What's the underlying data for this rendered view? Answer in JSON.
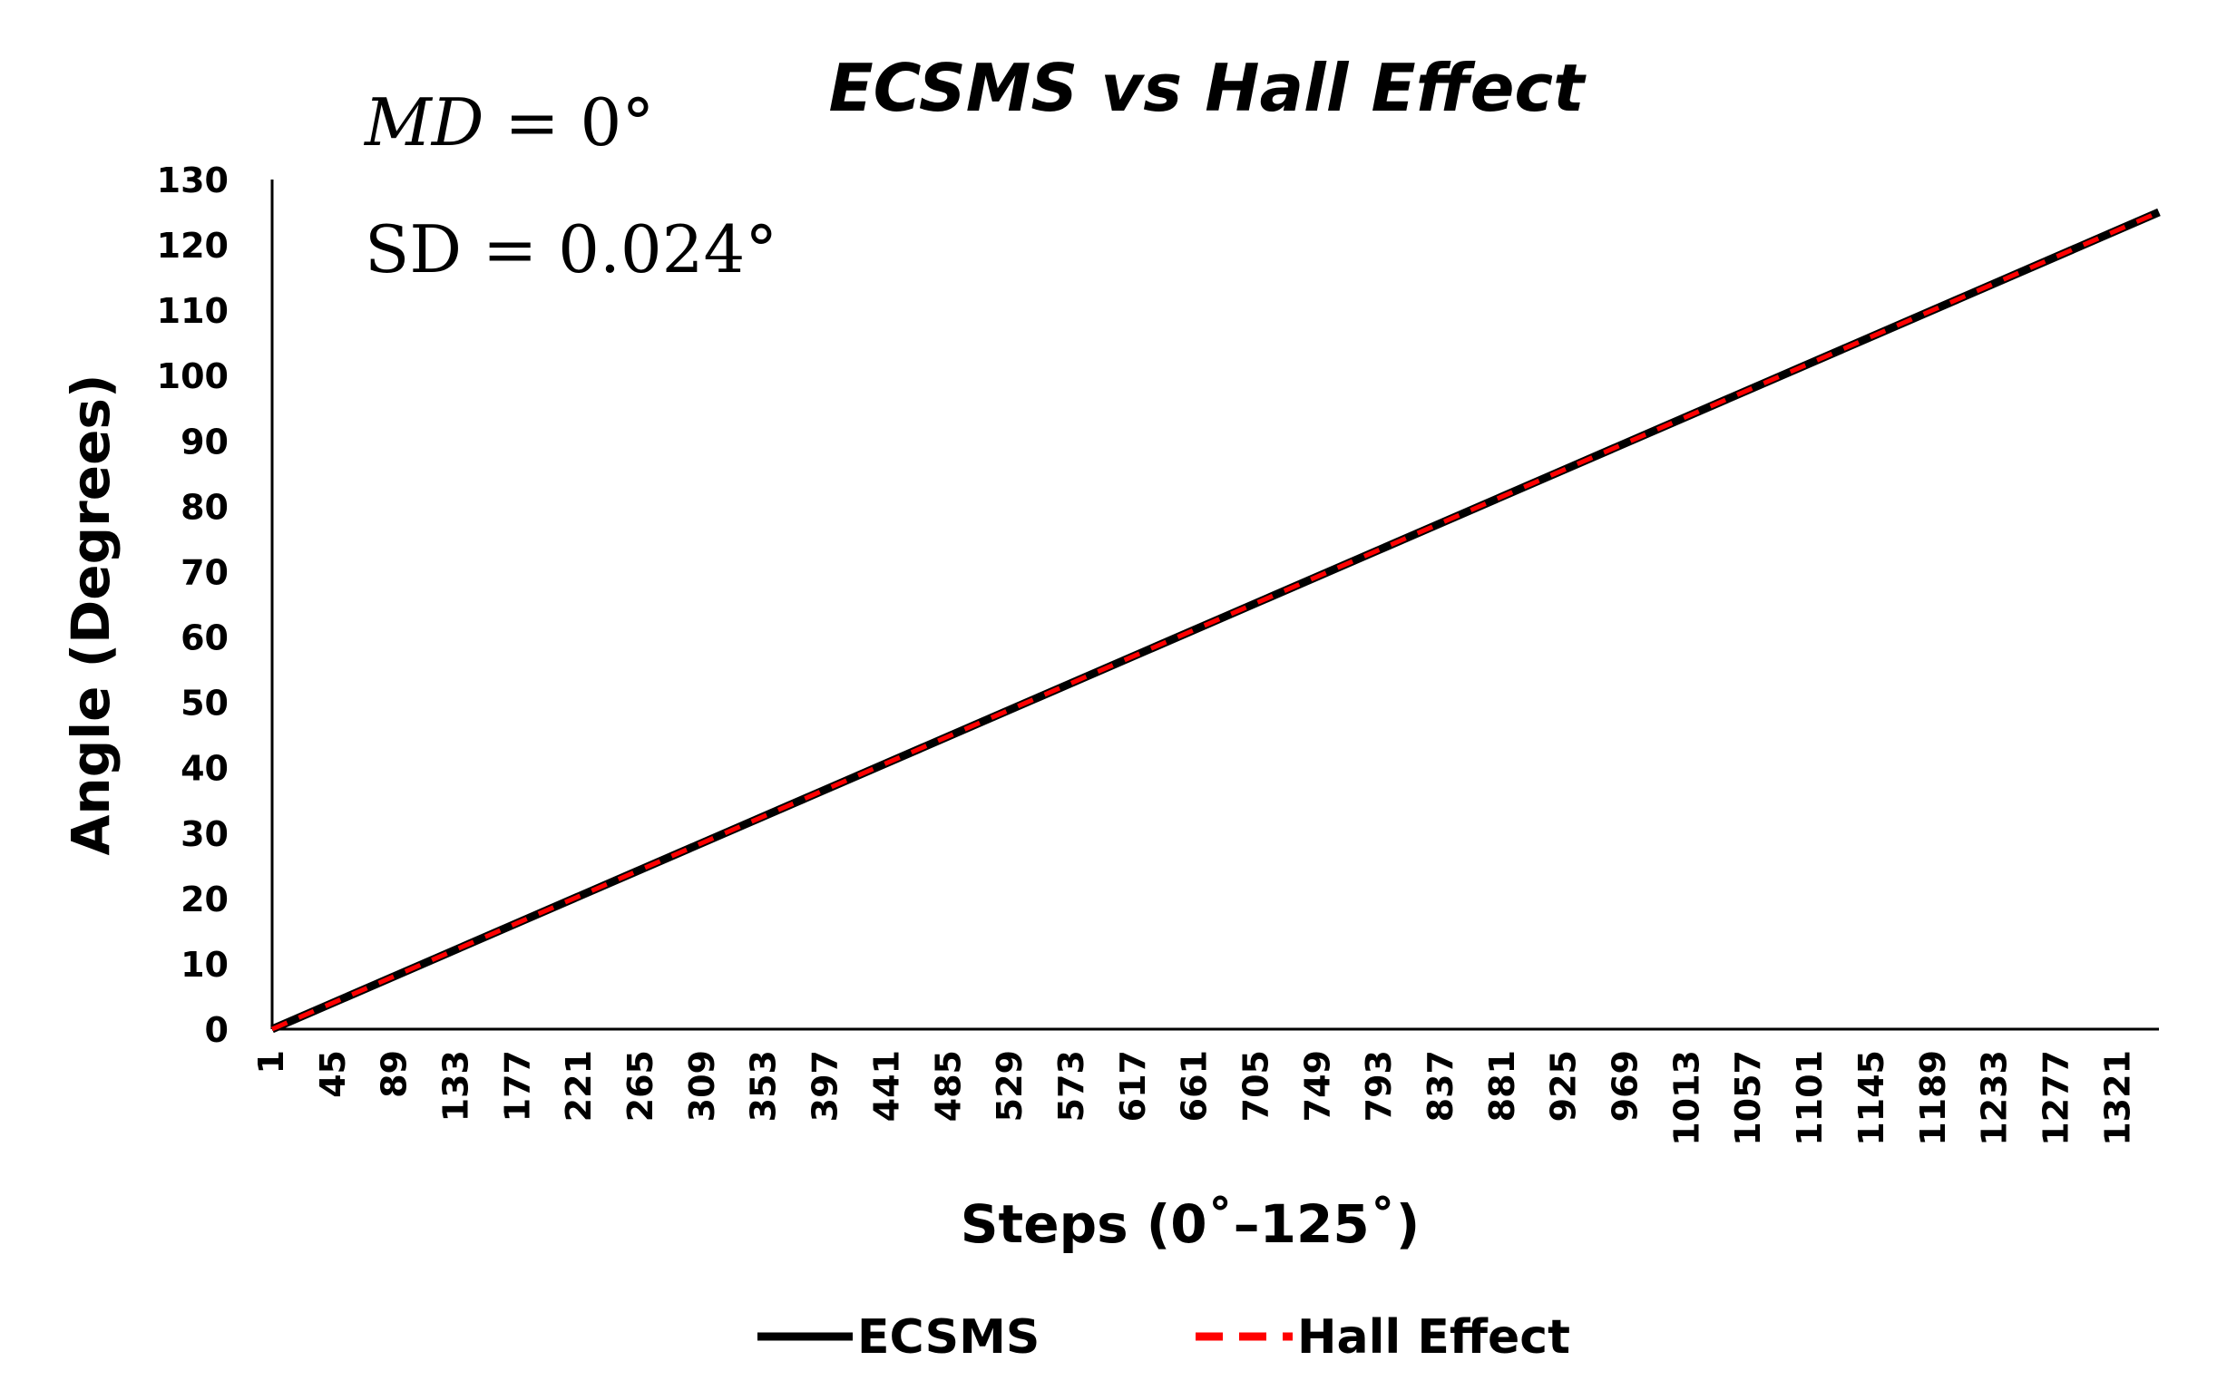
{
  "chart_data": {
    "type": "line",
    "title": "ECSMS vs Hall Effect",
    "xlabel": "Steps (0˚–125˚)",
    "ylabel": "Angle (Degrees)",
    "ylim": [
      0,
      130
    ],
    "xlim": [
      1,
      1350
    ],
    "yticks": [
      0,
      10,
      20,
      30,
      40,
      50,
      60,
      70,
      80,
      90,
      100,
      110,
      120,
      130
    ],
    "xtick_labels": [
      "1",
      "45",
      "89",
      "133",
      "177",
      "221",
      "265",
      "309",
      "353",
      "397",
      "441",
      "485",
      "529",
      "573",
      "617",
      "661",
      "705",
      "749",
      "793",
      "837",
      "881",
      "925",
      "969",
      "1013",
      "1057",
      "1101",
      "1145",
      "1189",
      "1233",
      "1277",
      "1321"
    ],
    "series": [
      {
        "name": "ECSMS",
        "color": "#000000",
        "style": "solid",
        "x": [
          1,
          1350
        ],
        "y": [
          0,
          125
        ]
      },
      {
        "name": "Hall Effect",
        "color": "#ff0000",
        "style": "dashed",
        "x": [
          1,
          1350
        ],
        "y": [
          0,
          125
        ]
      }
    ],
    "annotations": {
      "md_label": "MD",
      "md_value": " = 0°",
      "sd_text": "SD = 0.024°"
    },
    "legend_position": "bottom"
  }
}
